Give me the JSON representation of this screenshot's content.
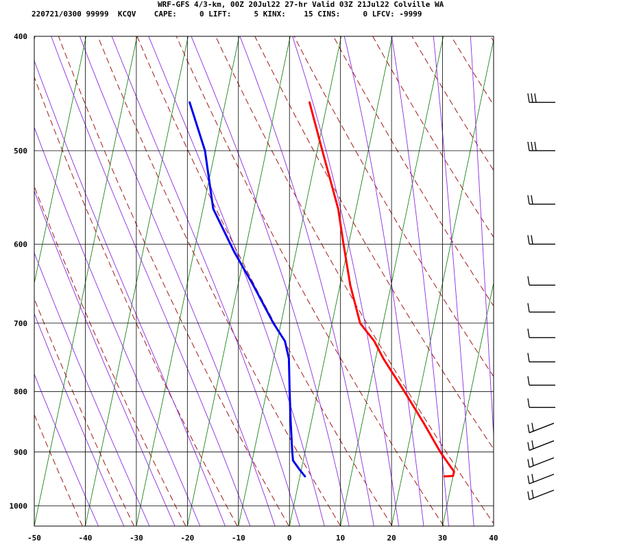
{
  "header": {
    "line1": "WRF-GFS 4/3-km, 00Z 20Jul22 27-hr Valid 03Z 21Jul22 Colville WA",
    "line2": "220721/0300 99999  KCQV    CAPE:     0 LIFT:     5 KINX:    15 CINS:     0 LFCV: -9999"
  },
  "chart_data": {
    "type": "line",
    "chart_kind": "skew-T log-P sounding",
    "title": "WRF-GFS 4/3-km, 00Z 20Jul22 27-hr Valid 03Z 21Jul22 Colville WA",
    "xlim": [
      -50,
      40
    ],
    "ylim": [
      1040,
      400
    ],
    "y_scale": "log",
    "x_ticks": [
      -50,
      -40,
      -30,
      -20,
      -10,
      0,
      10,
      20,
      30,
      40
    ],
    "x_tick_labels": [
      "-50",
      "-40",
      "-30",
      "-20",
      "-10",
      "0",
      "10",
      "20",
      "30",
      "40"
    ],
    "y_ticks": [
      400,
      500,
      600,
      700,
      800,
      900,
      1000
    ],
    "y_tick_labels": [
      "400",
      "500",
      "600",
      "700",
      "800",
      "900",
      "1000"
    ],
    "grid": true,
    "colors": {
      "temperature": "#ff0000",
      "dewpoint": "#0000ee",
      "dry_adiabat": "#990000",
      "moist_adiabat": "#8a2be2",
      "isotherm": "#007700",
      "grid": "#000000"
    },
    "series": [
      {
        "kind": "temperature",
        "points": [
          {
            "p": 944,
            "t": 28.3
          },
          {
            "p": 943,
            "t": 30.0
          },
          {
            "p": 935,
            "t": 30.0
          },
          {
            "p": 925,
            "t": 29.0
          },
          {
            "p": 900,
            "t": 26.5
          },
          {
            "p": 850,
            "t": 22.0
          },
          {
            "p": 800,
            "t": 17.0
          },
          {
            "p": 750,
            "t": 11.5
          },
          {
            "p": 725,
            "t": 9.0
          },
          {
            "p": 700,
            "t": 5.5
          },
          {
            "p": 650,
            "t": 2.0
          },
          {
            "p": 600,
            "t": -1.0
          },
          {
            "p": 560,
            "t": -3.5
          },
          {
            "p": 500,
            "t": -9.0
          },
          {
            "p": 455,
            "t": -13.5
          }
        ]
      },
      {
        "kind": "dewpoint",
        "points": [
          {
            "p": 944,
            "t": 1.0
          },
          {
            "p": 930,
            "t": -0.5
          },
          {
            "p": 915,
            "t": -2.0
          },
          {
            "p": 900,
            "t": -2.5
          },
          {
            "p": 850,
            "t": -4.0
          },
          {
            "p": 800,
            "t": -5.5
          },
          {
            "p": 750,
            "t": -7.0
          },
          {
            "p": 725,
            "t": -8.5
          },
          {
            "p": 700,
            "t": -11.5
          },
          {
            "p": 650,
            "t": -17.0
          },
          {
            "p": 610,
            "t": -22.0
          },
          {
            "p": 560,
            "t": -28.0
          },
          {
            "p": 500,
            "t": -32.0
          },
          {
            "p": 455,
            "t": -37.0
          }
        ]
      }
    ],
    "wind_barb_levels": [
      455,
      500,
      555,
      600,
      650,
      685,
      720,
      755,
      790,
      825,
      860,
      890,
      920,
      950,
      980
    ]
  }
}
